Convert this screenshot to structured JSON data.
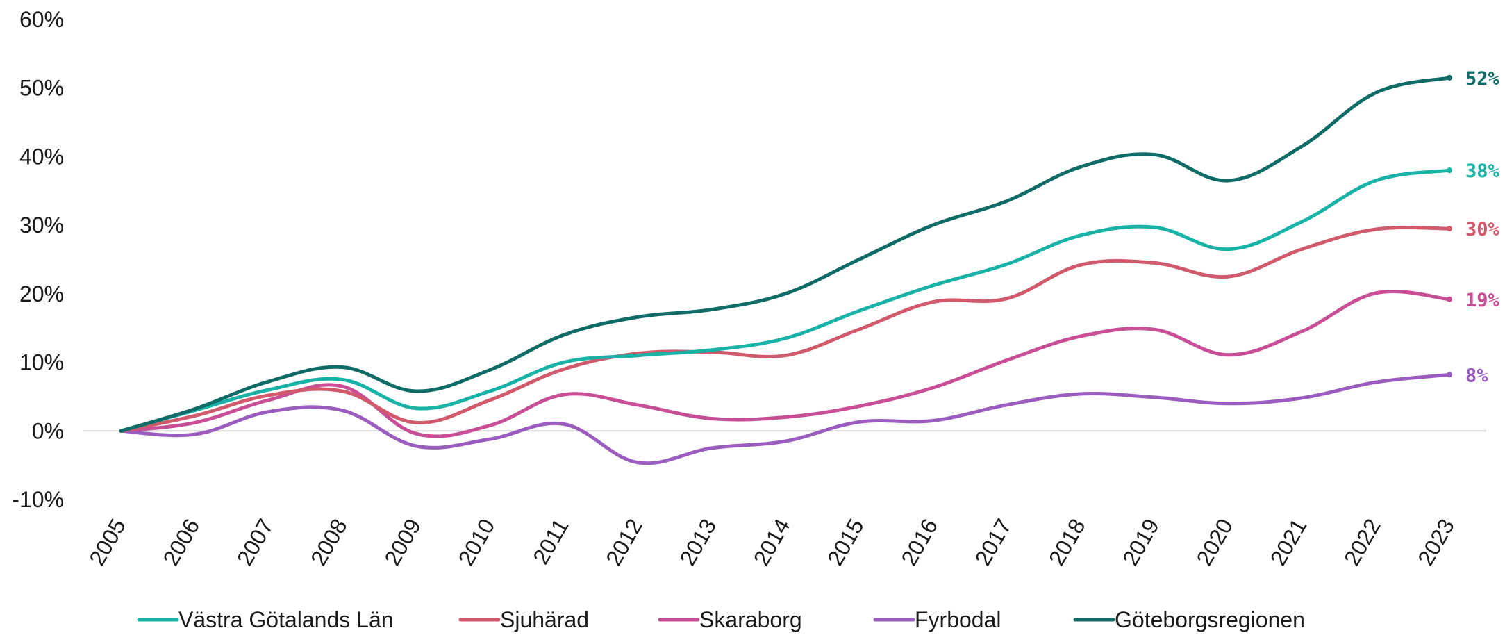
{
  "chart_data": {
    "type": "line",
    "title": "",
    "xlabel": "",
    "ylabel": "",
    "x": [
      "2005",
      "2006",
      "2007",
      "2008",
      "2009",
      "2010",
      "2011",
      "2012",
      "2013",
      "2014",
      "2015",
      "2016",
      "2017",
      "2018",
      "2019",
      "2020",
      "2021",
      "2022",
      "2023"
    ],
    "ylim": [
      -10,
      60
    ],
    "yticks": [
      -10,
      0,
      10,
      20,
      30,
      40,
      50,
      60
    ],
    "ytick_labels": [
      "-10%",
      "0%",
      "10%",
      "20%",
      "30%",
      "40%",
      "50%",
      "60%"
    ],
    "zero_line": true,
    "grid": false,
    "legend_position": "bottom",
    "series": [
      {
        "name": "Västra Götalands Län",
        "color": "#18b3a6",
        "end_label": "38%",
        "values": [
          0,
          3,
          6,
          7.5,
          3.3,
          5.8,
          10,
          11,
          11.8,
          13.5,
          17.5,
          21.2,
          24.3,
          28.5,
          29.7,
          26.5,
          30.5,
          36.5,
          38
        ]
      },
      {
        "name": "Sjuhärad",
        "color": "#d1596c",
        "end_label": "30%",
        "values": [
          0,
          2.2,
          5.2,
          5.8,
          1.2,
          4.5,
          9,
          11.3,
          11.5,
          11,
          14.8,
          18.8,
          19.3,
          24.2,
          24.5,
          22.5,
          26.5,
          29.4,
          29.5
        ]
      },
      {
        "name": "Skaraborg",
        "color": "#c84e95",
        "end_label": "19%",
        "values": [
          0,
          1.2,
          4.5,
          6.5,
          -0.4,
          0.8,
          5.3,
          3.8,
          1.8,
          2,
          3.6,
          6.3,
          10.3,
          13.8,
          14.8,
          11.1,
          14.5,
          20.1,
          19.2
        ]
      },
      {
        "name": "Fyrbodal",
        "color": "#9b5cbf",
        "end_label": "8%",
        "values": [
          0,
          -0.5,
          2.8,
          3,
          -2.2,
          -1.2,
          1,
          -4.6,
          -2.5,
          -1.5,
          1.3,
          1.5,
          3.8,
          5.4,
          4.9,
          4,
          4.8,
          7.1,
          8.2
        ]
      },
      {
        "name": "Göteborgsregionen",
        "color": "#0f6b66",
        "end_label": "52%",
        "values": [
          0,
          3.2,
          7.2,
          9.3,
          5.8,
          8.9,
          14,
          16.6,
          17.7,
          20,
          25,
          30,
          33.5,
          38.5,
          40.3,
          36.5,
          41.5,
          49.3,
          51.5
        ]
      }
    ]
  }
}
